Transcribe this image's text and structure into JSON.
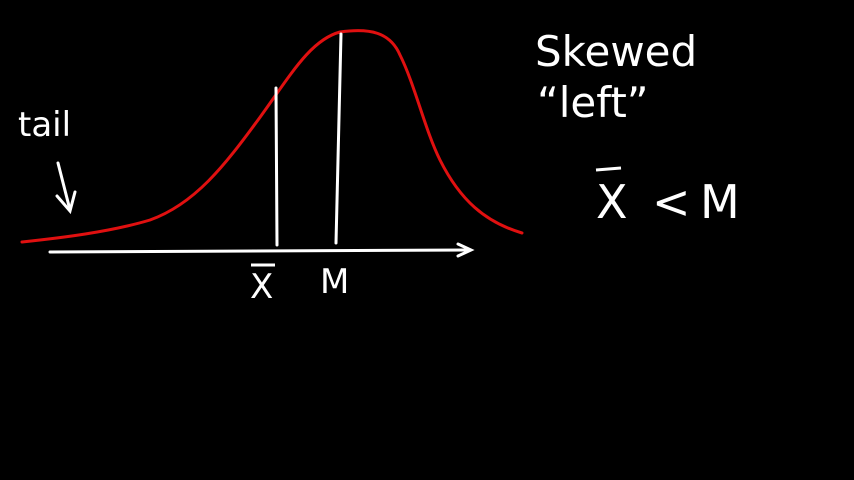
{
  "labels": {
    "tail": "tail",
    "mean": "X",
    "median": "M",
    "skew_line1": "Skewed",
    "skew_line2": "“left”",
    "relation_mean": "X",
    "relation_op": "<",
    "relation_median": "M"
  },
  "colors": {
    "background": "#000000",
    "curve": "#e01010",
    "ink": "#ffffff"
  }
}
